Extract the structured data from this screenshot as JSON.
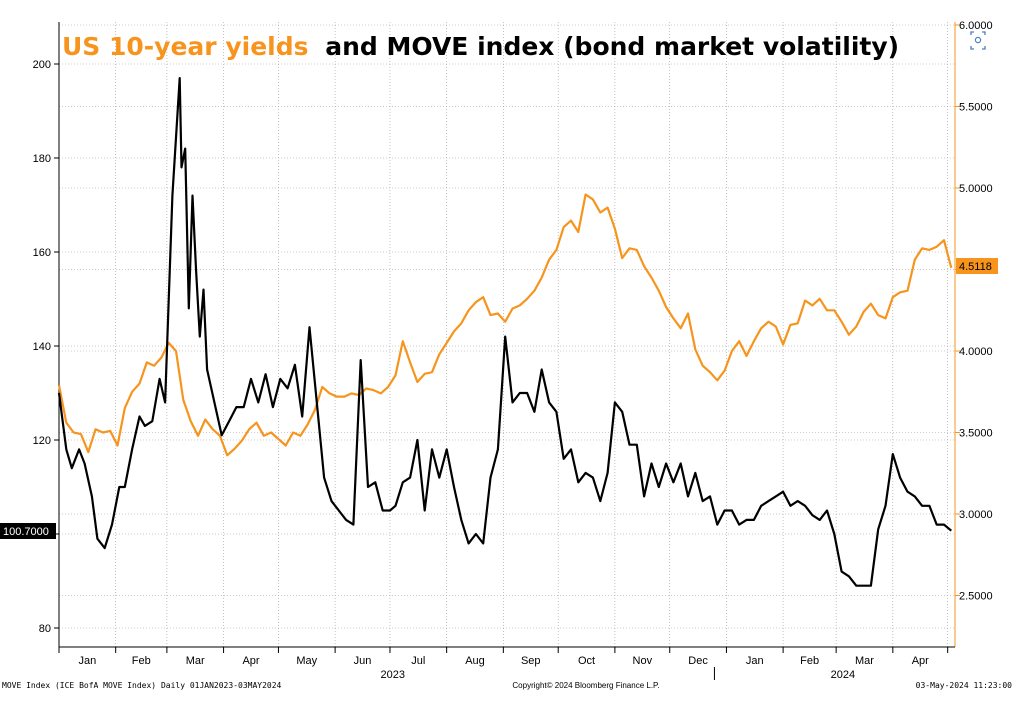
{
  "chart_data": {
    "type": "line",
    "title_highlight": "US 10-year yields",
    "title_rest": "and MOVE index (bond market volatility)",
    "colors": {
      "yield": "#f7941d",
      "move": "#000000",
      "grid": "#9a9a9a",
      "title_highlight": "#f7941d"
    },
    "left_axis": {
      "ticks": [
        "80",
        "100",
        "120",
        "140",
        "160",
        "180",
        "200"
      ],
      "tick_values": [
        80,
        100,
        120,
        140,
        160,
        180,
        200
      ]
    },
    "right_axis": {
      "ticks": [
        "2.5000",
        "3.0000",
        "3.5000",
        "4.0000",
        "4.5000",
        "5.0000",
        "5.5000",
        "6.0000"
      ],
      "tick_values": [
        2.5,
        3.0,
        3.5,
        4.0,
        4.5,
        5.0,
        5.5,
        6.0
      ]
    },
    "x_month_labels": [
      "Jan",
      "Feb",
      "Mar",
      "Apr",
      "May",
      "Jun",
      "Jul",
      "Aug",
      "Sep",
      "Oct",
      "Nov",
      "Dec",
      "Jan",
      "Feb",
      "Mar",
      "Apr"
    ],
    "x_year_labels": [
      "2023",
      "2024"
    ],
    "x_range": [
      "2023-01-01",
      "2024-05-03"
    ],
    "last_values": {
      "move": "100.7000",
      "yield": "4.5118"
    },
    "series": [
      {
        "name": "MOVE Index (ICE BofA MOVE Index)",
        "axis": "left",
        "x": [
          "2023-01-01",
          "2023-01-05",
          "2023-01-08",
          "2023-01-12",
          "2023-01-15",
          "2023-01-19",
          "2023-01-22",
          "2023-01-26",
          "2023-01-30",
          "2023-02-03",
          "2023-02-06",
          "2023-02-10",
          "2023-02-14",
          "2023-02-17",
          "2023-02-21",
          "2023-02-25",
          "2023-02-28",
          "2023-03-04",
          "2023-03-08",
          "2023-03-09",
          "2023-03-11",
          "2023-03-13",
          "2023-03-15",
          "2023-03-17",
          "2023-03-19",
          "2023-03-21",
          "2023-03-23",
          "2023-03-27",
          "2023-03-31",
          "2023-04-04",
          "2023-04-08",
          "2023-04-12",
          "2023-04-16",
          "2023-04-20",
          "2023-04-24",
          "2023-04-28",
          "2023-05-02",
          "2023-05-06",
          "2023-05-10",
          "2023-05-14",
          "2023-05-18",
          "2023-05-22",
          "2023-05-26",
          "2023-05-30",
          "2023-06-03",
          "2023-06-07",
          "2023-06-11",
          "2023-06-15",
          "2023-06-19",
          "2023-06-23",
          "2023-06-27",
          "2023-07-01",
          "2023-07-04",
          "2023-07-08",
          "2023-07-12",
          "2023-07-16",
          "2023-07-20",
          "2023-07-24",
          "2023-07-28",
          "2023-08-01",
          "2023-08-05",
          "2023-08-09",
          "2023-08-13",
          "2023-08-17",
          "2023-08-21",
          "2023-08-25",
          "2023-08-29",
          "2023-09-02",
          "2023-09-06",
          "2023-09-10",
          "2023-09-14",
          "2023-09-18",
          "2023-09-22",
          "2023-09-26",
          "2023-09-30",
          "2023-10-04",
          "2023-10-08",
          "2023-10-12",
          "2023-10-16",
          "2023-10-20",
          "2023-10-24",
          "2023-10-28",
          "2023-11-01",
          "2023-11-05",
          "2023-11-09",
          "2023-11-13",
          "2023-11-17",
          "2023-11-21",
          "2023-11-25",
          "2023-11-29",
          "2023-12-03",
          "2023-12-07",
          "2023-12-11",
          "2023-12-15",
          "2023-12-19",
          "2023-12-23",
          "2023-12-27",
          "2023-12-31",
          "2024-01-04",
          "2024-01-08",
          "2024-01-12",
          "2024-01-16",
          "2024-01-20",
          "2024-01-24",
          "2024-01-28",
          "2024-02-01",
          "2024-02-05",
          "2024-02-09",
          "2024-02-13",
          "2024-02-17",
          "2024-02-21",
          "2024-02-25",
          "2024-02-29",
          "2024-03-04",
          "2024-03-08",
          "2024-03-12",
          "2024-03-16",
          "2024-03-20",
          "2024-03-24",
          "2024-03-28",
          "2024-04-01",
          "2024-04-05",
          "2024-04-09",
          "2024-04-13",
          "2024-04-17",
          "2024-04-21",
          "2024-04-25",
          "2024-04-29",
          "2024-05-03"
        ],
        "values": [
          130,
          118,
          114,
          118,
          115,
          108,
          99,
          97,
          102,
          110,
          110,
          118,
          125,
          123,
          124,
          133,
          128,
          172,
          197,
          178,
          182,
          148,
          172,
          156,
          142,
          152,
          135,
          128,
          121,
          124,
          127,
          127,
          133,
          128,
          134,
          127,
          133,
          131,
          136,
          125,
          144,
          128,
          112,
          107,
          105,
          103,
          102,
          137,
          110,
          111,
          105,
          105,
          106,
          111,
          112,
          120,
          105,
          118,
          112,
          118,
          110,
          103,
          98,
          100,
          98,
          112,
          118,
          142,
          128,
          130,
          130,
          126,
          135,
          128,
          126,
          116,
          118,
          111,
          113,
          112,
          107,
          113,
          128,
          126,
          119,
          119,
          108,
          115,
          110,
          115,
          111,
          115,
          108,
          113,
          107,
          108,
          102,
          105,
          105,
          102,
          103,
          103,
          106,
          107,
          108,
          109,
          106,
          107,
          106,
          104,
          103,
          105,
          100,
          92,
          91,
          89,
          89,
          89,
          101,
          106,
          117,
          112,
          109,
          108,
          106,
          106,
          102,
          102,
          100.7
        ]
      },
      {
        "name": "US 10-year yields",
        "axis": "right",
        "x": [
          "2023-01-01",
          "2023-01-05",
          "2023-01-09",
          "2023-01-13",
          "2023-01-17",
          "2023-01-21",
          "2023-01-25",
          "2023-01-29",
          "2023-02-02",
          "2023-02-06",
          "2023-02-10",
          "2023-02-14",
          "2023-02-18",
          "2023-02-22",
          "2023-02-26",
          "2023-03-02",
          "2023-03-06",
          "2023-03-10",
          "2023-03-14",
          "2023-03-18",
          "2023-03-22",
          "2023-03-26",
          "2023-03-30",
          "2023-04-03",
          "2023-04-07",
          "2023-04-11",
          "2023-04-15",
          "2023-04-19",
          "2023-04-23",
          "2023-04-27",
          "2023-05-01",
          "2023-05-05",
          "2023-05-09",
          "2023-05-13",
          "2023-05-17",
          "2023-05-21",
          "2023-05-25",
          "2023-05-29",
          "2023-06-02",
          "2023-06-06",
          "2023-06-10",
          "2023-06-14",
          "2023-06-18",
          "2023-06-22",
          "2023-06-26",
          "2023-06-30",
          "2023-07-04",
          "2023-07-08",
          "2023-07-12",
          "2023-07-16",
          "2023-07-20",
          "2023-07-24",
          "2023-07-28",
          "2023-08-01",
          "2023-08-05",
          "2023-08-09",
          "2023-08-13",
          "2023-08-17",
          "2023-08-21",
          "2023-08-25",
          "2023-08-29",
          "2023-09-02",
          "2023-09-06",
          "2023-09-10",
          "2023-09-14",
          "2023-09-18",
          "2023-09-22",
          "2023-09-26",
          "2023-09-30",
          "2023-10-04",
          "2023-10-08",
          "2023-10-12",
          "2023-10-16",
          "2023-10-20",
          "2023-10-24",
          "2023-10-28",
          "2023-11-01",
          "2023-11-05",
          "2023-11-09",
          "2023-11-13",
          "2023-11-17",
          "2023-11-21",
          "2023-11-25",
          "2023-11-29",
          "2023-12-03",
          "2023-12-07",
          "2023-12-11",
          "2023-12-15",
          "2023-12-19",
          "2023-12-23",
          "2023-12-27",
          "2023-12-31",
          "2024-01-04",
          "2024-01-08",
          "2024-01-12",
          "2024-01-16",
          "2024-01-20",
          "2024-01-24",
          "2024-01-28",
          "2024-02-01",
          "2024-02-05",
          "2024-02-09",
          "2024-02-13",
          "2024-02-17",
          "2024-02-21",
          "2024-02-25",
          "2024-02-29",
          "2024-03-04",
          "2024-03-08",
          "2024-03-12",
          "2024-03-16",
          "2024-03-20",
          "2024-03-24",
          "2024-03-28",
          "2024-04-01",
          "2024-04-05",
          "2024-04-09",
          "2024-04-13",
          "2024-04-17",
          "2024-04-21",
          "2024-04-25",
          "2024-04-29",
          "2024-05-03"
        ],
        "values": [
          3.79,
          3.56,
          3.5,
          3.49,
          3.38,
          3.52,
          3.5,
          3.51,
          3.42,
          3.65,
          3.75,
          3.8,
          3.93,
          3.91,
          3.96,
          4.05,
          4.0,
          3.7,
          3.57,
          3.48,
          3.58,
          3.52,
          3.48,
          3.36,
          3.4,
          3.45,
          3.52,
          3.56,
          3.48,
          3.5,
          3.46,
          3.42,
          3.5,
          3.48,
          3.55,
          3.64,
          3.78,
          3.74,
          3.72,
          3.72,
          3.74,
          3.73,
          3.77,
          3.76,
          3.74,
          3.78,
          3.85,
          4.06,
          3.93,
          3.81,
          3.86,
          3.87,
          3.98,
          4.05,
          4.12,
          4.17,
          4.25,
          4.3,
          4.33,
          4.22,
          4.23,
          4.18,
          4.26,
          4.28,
          4.32,
          4.37,
          4.45,
          4.56,
          4.62,
          4.76,
          4.8,
          4.73,
          4.96,
          4.93,
          4.85,
          4.88,
          4.75,
          4.57,
          4.63,
          4.62,
          4.52,
          4.45,
          4.37,
          4.27,
          4.2,
          4.14,
          4.23,
          4.01,
          3.91,
          3.87,
          3.82,
          3.88,
          4.0,
          4.06,
          3.97,
          4.06,
          4.14,
          4.18,
          4.15,
          4.04,
          4.16,
          4.17,
          4.31,
          4.28,
          4.32,
          4.25,
          4.25,
          4.18,
          4.1,
          4.15,
          4.24,
          4.29,
          4.22,
          4.2,
          4.33,
          4.36,
          4.37,
          4.56,
          4.63,
          4.62,
          4.64,
          4.68,
          4.51
        ]
      }
    ]
  },
  "footer": {
    "left": "MOVE Index (ICE BofA MOVE Index)  Daily 01JAN2023-03MAY2024",
    "center": "Copyright© 2024 Bloomberg Finance L.P.",
    "right": "03-May-2024 11:23:00"
  }
}
